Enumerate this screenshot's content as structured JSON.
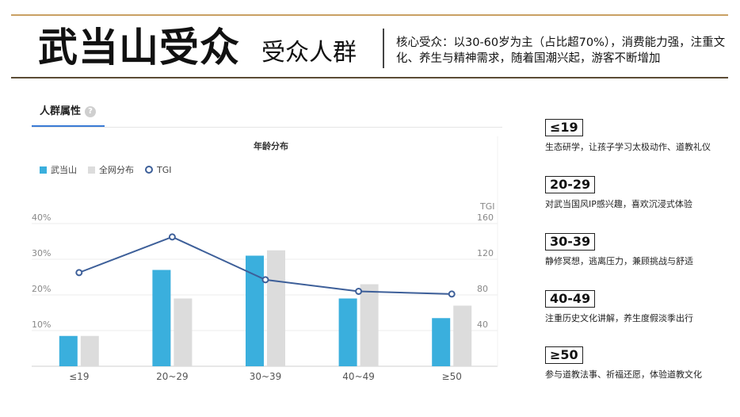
{
  "header": {
    "title": "武当山受众",
    "subtitle": "受众人群",
    "headline": "核心受众：以30-60岁为主（占比超70%），消费能力强，注重文化、养生与精神需求，随着国潮兴起，游客不断增加"
  },
  "panel": {
    "tab_label": "人群属性",
    "help_icon": "?"
  },
  "chart_data": {
    "type": "bar",
    "title": "年龄分布",
    "categories": [
      "≤19",
      "20~29",
      "30~39",
      "40~49",
      "≥50"
    ],
    "series": [
      {
        "name": "武当山",
        "values": [
          8.5,
          27,
          31,
          19,
          13.5
        ],
        "color": "#3aafdd"
      },
      {
        "name": "全网分布",
        "values": [
          8.5,
          19,
          32.5,
          23,
          17
        ],
        "color": "#dcdcdc"
      }
    ],
    "line_series": {
      "name": "TGI",
      "values": [
        105,
        145,
        97,
        84,
        81
      ],
      "color": "#3d5f99"
    },
    "ylim": [
      0,
      40
    ],
    "y_ticks": [
      "10%",
      "20%",
      "30%",
      "40%"
    ],
    "y2label": "TGI",
    "y2lim": [
      0,
      160
    ],
    "y2_ticks": [
      "40",
      "80",
      "120",
      "160"
    ],
    "grid": true,
    "legend_position": "top-left"
  },
  "segments": [
    {
      "label": "≤19",
      "desc": "生态研学，让孩子学习太极动作、道教礼仪"
    },
    {
      "label": "20-29",
      "desc": "对武当国风IP感兴趣，喜欢沉浸式体验"
    },
    {
      "label": "30-39",
      "desc": "静修冥想，逃离压力，兼顾挑战与舒适"
    },
    {
      "label": "40-49",
      "desc": "注重历史文化讲解，养生度假淡季出行"
    },
    {
      "label": "≥50",
      "desc": "参与道教法事、祈福还愿，体验道教文化"
    }
  ]
}
